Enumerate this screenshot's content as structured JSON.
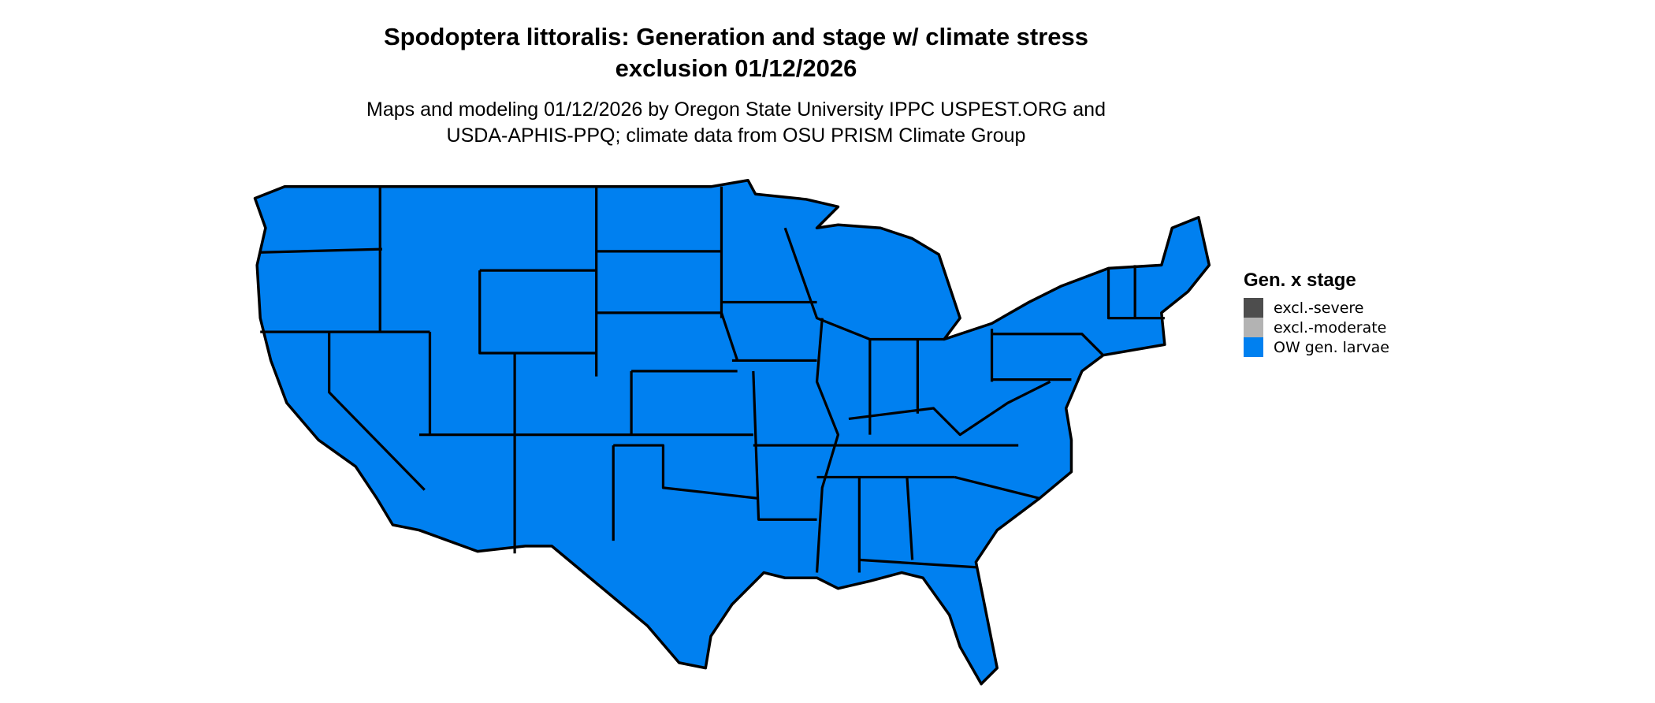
{
  "title_line1": "Spodoptera littoralis: Generation and stage w/ climate stress",
  "title_line2": "exclusion 01/12/2026",
  "subtitle_line1": "Maps and modeling 01/12/2026 by Oregon State University IPPC USPEST.ORG and",
  "subtitle_line2": "USDA-APHIS-PPQ; climate data from OSU PRISM Climate Group",
  "map": {
    "region": "Contiguous United States",
    "fill_category": "OW gen. larvae",
    "fill_color": "#0080F0",
    "border_color": "#000000"
  },
  "legend": {
    "title": "Gen. x stage",
    "items": [
      {
        "label": "excl.-severe",
        "color": "#4D4D4D"
      },
      {
        "label": "excl.-moderate",
        "color": "#B3B3B3"
      },
      {
        "label": "OW gen. larvae",
        "color": "#0080F0"
      }
    ]
  }
}
